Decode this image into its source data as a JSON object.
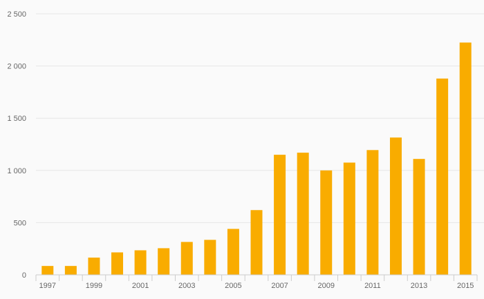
{
  "chart_data": {
    "type": "bar",
    "title": "",
    "xlabel": "",
    "ylabel": "",
    "categories": [
      "1997",
      "1998",
      "1999",
      "2000",
      "2001",
      "2002",
      "2003",
      "2004",
      "2005",
      "2006",
      "2007",
      "2008",
      "2009",
      "2010",
      "2011",
      "2012",
      "2013",
      "2014",
      "2015"
    ],
    "x_tick_labels": [
      "1997",
      "",
      "1999",
      "",
      "2001",
      "",
      "2003",
      "",
      "2005",
      "",
      "2007",
      "",
      "2009",
      "",
      "2011",
      "",
      "2013",
      "",
      "2015"
    ],
    "values": [
      85,
      85,
      165,
      215,
      235,
      255,
      315,
      335,
      440,
      620,
      1150,
      1170,
      1000,
      1075,
      1195,
      1315,
      1110,
      1880,
      2225
    ],
    "ylim": [
      0,
      2500
    ],
    "y_ticks": [
      0,
      500,
      1000,
      1500,
      2000,
      2500
    ],
    "y_tick_labels": [
      "0",
      "500",
      "1 000",
      "1 500",
      "2 000",
      "2 500"
    ],
    "grid": true,
    "legend": "none",
    "colors": {
      "bar": "#f9ac00",
      "background": "#fafafa"
    }
  }
}
